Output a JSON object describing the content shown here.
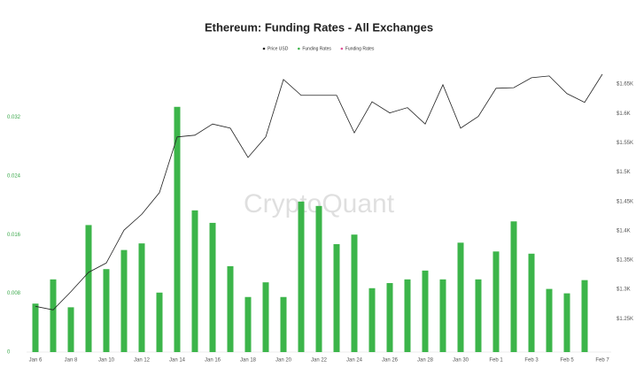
{
  "chart_data": {
    "type": "combo",
    "title": "Ethereum: Funding Rates - All Exchanges",
    "watermark": "CryptoQuant",
    "categories": [
      "Jan 6",
      null,
      "Jan 8",
      null,
      "Jan 10",
      null,
      "Jan 12",
      null,
      "Jan 14",
      null,
      "Jan 16",
      null,
      "Jan 18",
      null,
      "Jan 20",
      null,
      "Jan 22",
      null,
      "Jan 24",
      null,
      "Jan 26",
      null,
      "Jan 28",
      null,
      "Jan 30",
      null,
      "Feb 1",
      null,
      "Feb 3",
      null,
      "Feb 5",
      null,
      "Feb 7"
    ],
    "series": [
      {
        "name": "Price USD",
        "type": "line",
        "axis": "y2",
        "color": "#222222",
        "values": [
          1271,
          1265,
          1296,
          1329,
          1345,
          1401,
          1428,
          1465,
          1560,
          1563,
          1582,
          1575,
          1525,
          1560,
          1658,
          1631,
          1631,
          1631,
          1567,
          1620,
          1601,
          1610,
          1582,
          1649,
          1575,
          1595,
          1643,
          1644,
          1661,
          1664,
          1634,
          1619,
          1667
        ]
      },
      {
        "name": "Funding Rates",
        "type": "bar",
        "color": "#3cb54a",
        "values": [
          0.0066,
          0.0099,
          0.0061,
          0.0173,
          0.0113,
          0.0139,
          0.0148,
          0.0081,
          0.0334,
          0.0193,
          0.0176,
          0.0117,
          0.0075,
          0.0095,
          0.0075,
          0.0205,
          0.0199,
          0.0147,
          0.016,
          0.0087,
          0.0094,
          0.0099,
          0.0111,
          0.0099,
          0.0149,
          0.0099,
          0.0137,
          0.0178,
          0.0134,
          0.0086,
          0.008,
          0.0098,
          null
        ]
      },
      {
        "name": "Funding Rates",
        "type": "bar",
        "color": "#e05297",
        "values": [
          null,
          null,
          null,
          null,
          null,
          null,
          null,
          null,
          null,
          null,
          null,
          null,
          null,
          null,
          null,
          null,
          null,
          null,
          null,
          null,
          null,
          null,
          null,
          null,
          null,
          null,
          null,
          null,
          null,
          null,
          null,
          null,
          null
        ]
      }
    ],
    "ylim": [
      0,
      0.04
    ],
    "yticks": [
      0,
      0.008,
      0.016,
      0.024,
      0.032
    ],
    "y2lim": [
      1193,
      1694
    ],
    "y2ticks": [
      {
        "value": 1250,
        "label": "$1.25K"
      },
      {
        "value": 1300,
        "label": "$1.3K"
      },
      {
        "value": 1350,
        "label": "$1.35K"
      },
      {
        "value": 1400,
        "label": "$1.4K"
      },
      {
        "value": 1450,
        "label": "$1.45K"
      },
      {
        "value": 1500,
        "label": "$1.5K"
      },
      {
        "value": 1550,
        "label": "$1.55K"
      },
      {
        "value": 1600,
        "label": "$1.6K"
      },
      {
        "value": 1650,
        "label": "$1.65K"
      }
    ],
    "grid": false
  }
}
